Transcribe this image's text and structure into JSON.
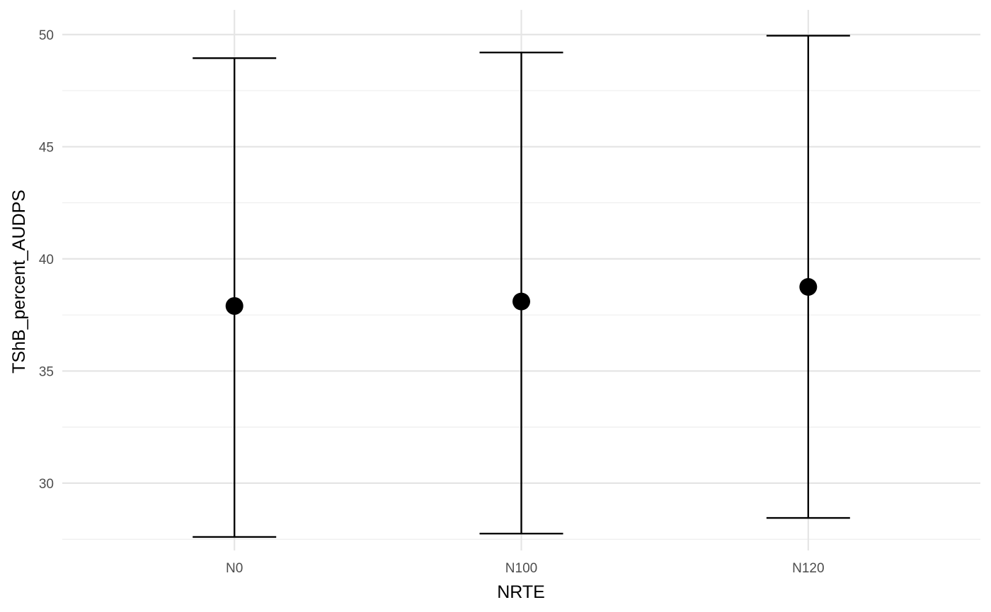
{
  "chart_data": {
    "type": "scatter",
    "title": "",
    "xlabel": "NRTE",
    "ylabel": "TShB_percent_AUDPS",
    "categories": [
      "N0",
      "N100",
      "N120"
    ],
    "series": [
      {
        "values": [
          37.9,
          38.1,
          38.75
        ],
        "lower": [
          27.6,
          27.75,
          28.45
        ],
        "upper": [
          48.95,
          49.2,
          49.95
        ]
      }
    ],
    "ylim": [
      27.0,
      51.1
    ],
    "yticks": [
      30,
      35,
      40,
      45,
      50
    ],
    "yticks_minor": [
      27.5,
      32.5,
      37.5,
      42.5,
      47.5
    ],
    "grid": true,
    "legend": "none",
    "colors": {
      "points": "#000000",
      "errorbars": "#000000",
      "grid": "#e5e5e5",
      "tick_text": "#4d4d4d"
    }
  }
}
